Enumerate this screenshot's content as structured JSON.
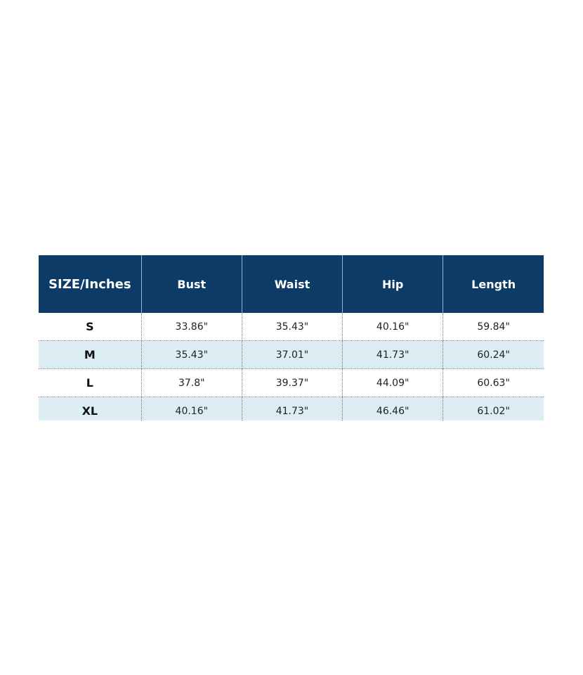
{
  "colors": {
    "header_bg": "#0b3b66",
    "header_text": "#ffffff",
    "alt_row": "#dcedf4"
  },
  "table": {
    "headers": [
      "SIZE/Inches",
      "Bust",
      "Waist",
      "Hip",
      "Length"
    ],
    "rows": [
      [
        "S",
        "33.86\"",
        "35.43\"",
        "40.16\"",
        "59.84\""
      ],
      [
        "M",
        "35.43\"",
        "37.01\"",
        "41.73\"",
        "60.24\""
      ],
      [
        "L",
        "37.8\"",
        "39.37\"",
        "44.09\"",
        "60.63\""
      ],
      [
        "XL",
        "40.16\"",
        "41.73\"",
        "46.46\"",
        "61.02\""
      ]
    ]
  }
}
